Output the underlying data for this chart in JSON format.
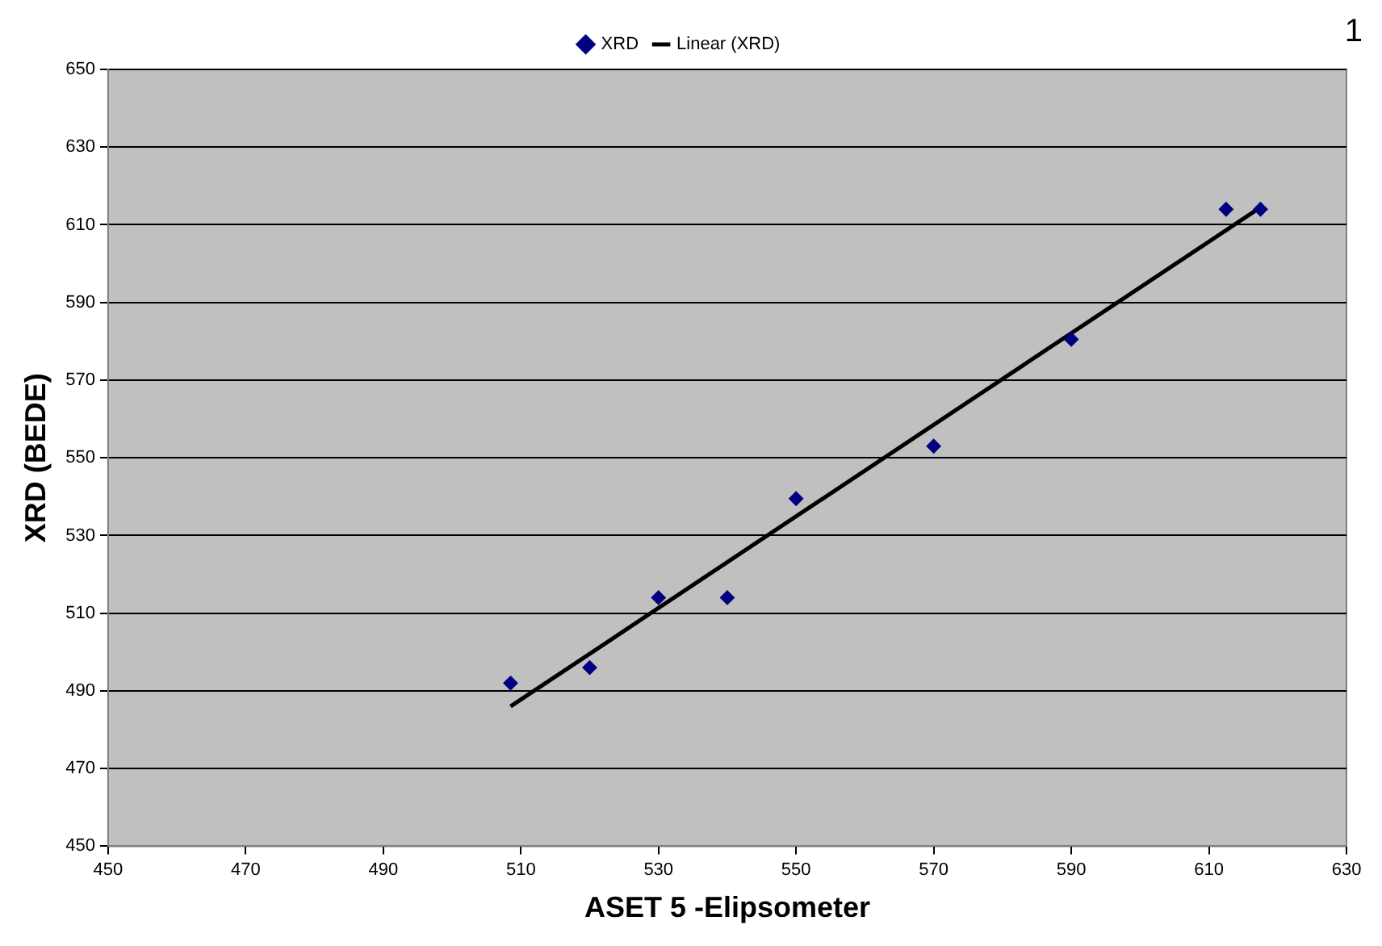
{
  "chart_data": {
    "type": "scatter",
    "xlabel": "ASET 5 -Elipsometer",
    "ylabel": "XRD (BEDE)",
    "xlim": [
      450,
      630
    ],
    "xticks": [
      450,
      470,
      490,
      510,
      530,
      550,
      570,
      590,
      610,
      630
    ],
    "ylim": [
      450,
      650
    ],
    "yticks": [
      450,
      470,
      490,
      510,
      530,
      550,
      570,
      590,
      610,
      630,
      650
    ],
    "grid": "y",
    "legend": "top",
    "annotations": [
      "1"
    ],
    "series": [
      {
        "name": "XRD",
        "marker": "diamond",
        "color": "#000080",
        "x": [
          508.5,
          520,
          530,
          540,
          550,
          570,
          590,
          612.5,
          617.5
        ],
        "values": [
          492,
          496,
          514,
          514,
          539.5,
          553,
          580.5,
          614,
          614
        ]
      },
      {
        "name": "Linear (XRD)",
        "type": "line",
        "marker": "none",
        "color": "#000000",
        "x": [
          508.5,
          617.5
        ],
        "values": [
          486,
          614.5
        ]
      }
    ]
  }
}
